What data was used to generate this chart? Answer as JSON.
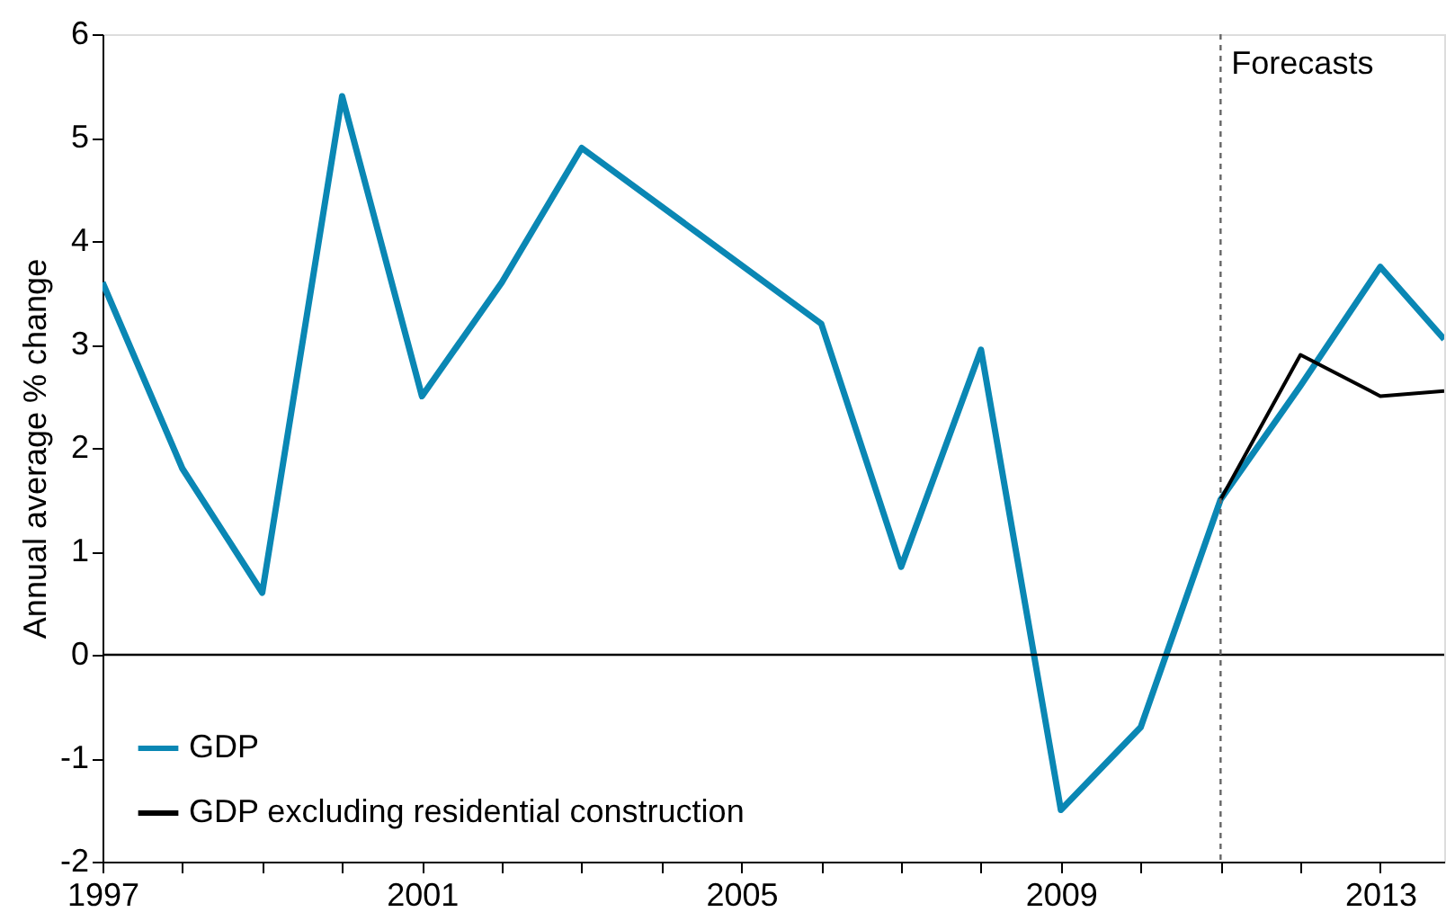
{
  "chart_data": {
    "type": "line",
    "ylabel": "Annual average % change",
    "xlim": [
      1997,
      2013.8
    ],
    "ylim": [
      -2,
      6
    ],
    "xticks": [
      1997,
      {
        "value": 1998,
        "label": null
      },
      {
        "value": 1999,
        "label": null
      },
      {
        "value": 2000,
        "label": null
      },
      2001,
      {
        "value": 2002,
        "label": null
      },
      {
        "value": 2003,
        "label": null
      },
      {
        "value": 2004,
        "label": null
      },
      2005,
      {
        "value": 2006,
        "label": null
      },
      {
        "value": 2007,
        "label": null
      },
      {
        "value": 2008,
        "label": null
      },
      2009,
      {
        "value": 2010,
        "label": null
      },
      {
        "value": 2011,
        "label": null
      },
      {
        "value": 2012,
        "label": null
      },
      2013
    ],
    "yticks": [
      -2,
      -1,
      0,
      1,
      2,
      3,
      4,
      5,
      6
    ],
    "series": [
      {
        "name": "GDP",
        "color": "#0a87b4",
        "x": [
          1997,
          1998,
          1999,
          2000,
          2001,
          2002,
          2003,
          2006,
          2007,
          2008,
          2009,
          2010,
          2011,
          2012,
          2013,
          2013.8
        ],
        "values": [
          3.6,
          1.8,
          0.6,
          5.4,
          2.5,
          3.6,
          4.9,
          3.2,
          0.85,
          2.95,
          -1.5,
          -0.7,
          1.5,
          2.6,
          3.75,
          3.05
        ]
      },
      {
        "name": "GDP excluding residential construction",
        "color": "#000000",
        "x": [
          2011,
          2012,
          2013,
          2013.8
        ],
        "values": [
          1.5,
          2.9,
          2.5,
          2.55
        ]
      }
    ],
    "ref_lines": [
      {
        "axis": "y",
        "value": 0,
        "label": null,
        "color": "#000000",
        "line_style": "solid"
      },
      {
        "axis": "x",
        "value": 2011,
        "label": "Forecasts",
        "color": "#666666",
        "line_style": "dashed"
      }
    ],
    "legend": "bottom left",
    "grid": false,
    "marker": "none",
    "line_style": "solid"
  }
}
